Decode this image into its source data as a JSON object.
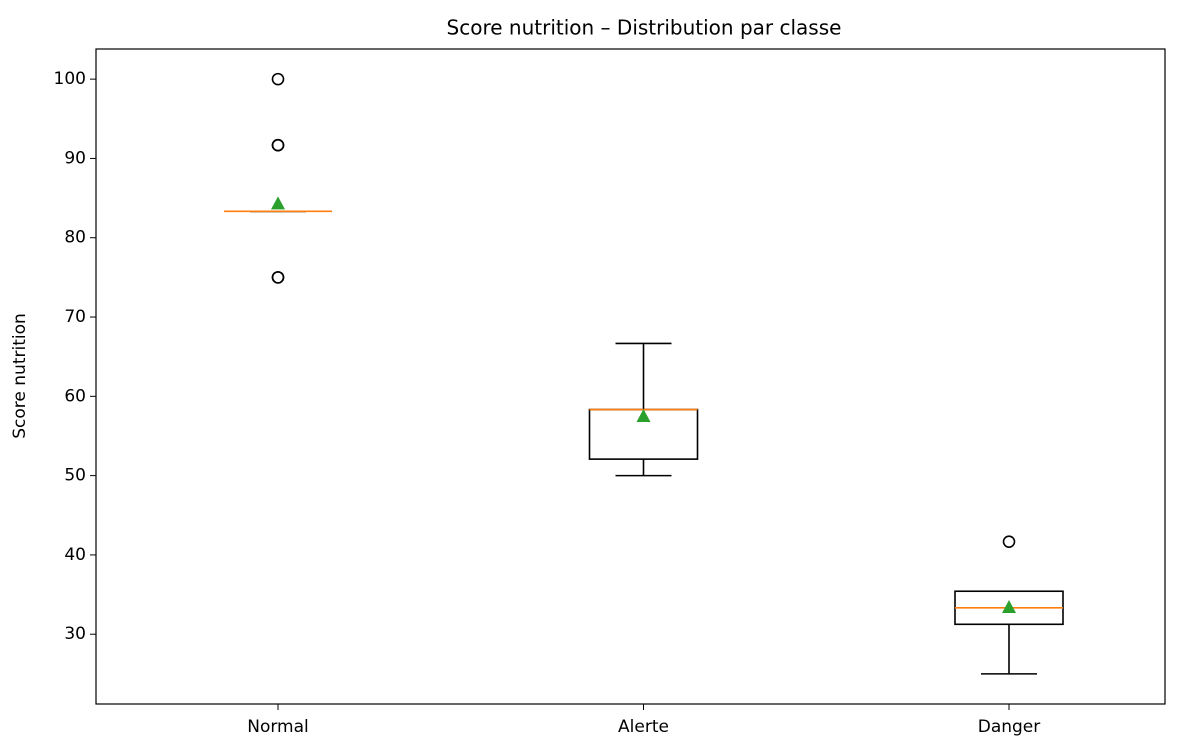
{
  "chart_data": {
    "type": "box",
    "title": "Score nutrition – Distribution par classe",
    "ylabel": "Score nutrition",
    "categories": [
      "Normal",
      "Alerte",
      "Danger"
    ],
    "boxes": [
      {
        "whislo": 83.33,
        "q1": 83.33,
        "med": 83.33,
        "q3": 83.33,
        "whishi": 83.33,
        "mean": 84.2,
        "fliers": [
          100,
          91.67,
          91.67,
          75,
          75
        ]
      },
      {
        "whislo": 50,
        "q1": 52.08,
        "med": 58.33,
        "q3": 58.33,
        "whishi": 66.67,
        "mean": 57.4,
        "fliers": []
      },
      {
        "whislo": 25,
        "q1": 31.25,
        "med": 33.33,
        "q3": 35.42,
        "whishi": 35.42,
        "mean": 33.3,
        "fliers": [
          41.67
        ]
      }
    ],
    "median_color": "#ff7f0e",
    "mean_color": "#2ca02c",
    "ylim": [
      21.2,
      103.8
    ],
    "yticks": [
      30,
      40,
      50,
      60,
      70,
      80,
      90,
      100
    ]
  }
}
